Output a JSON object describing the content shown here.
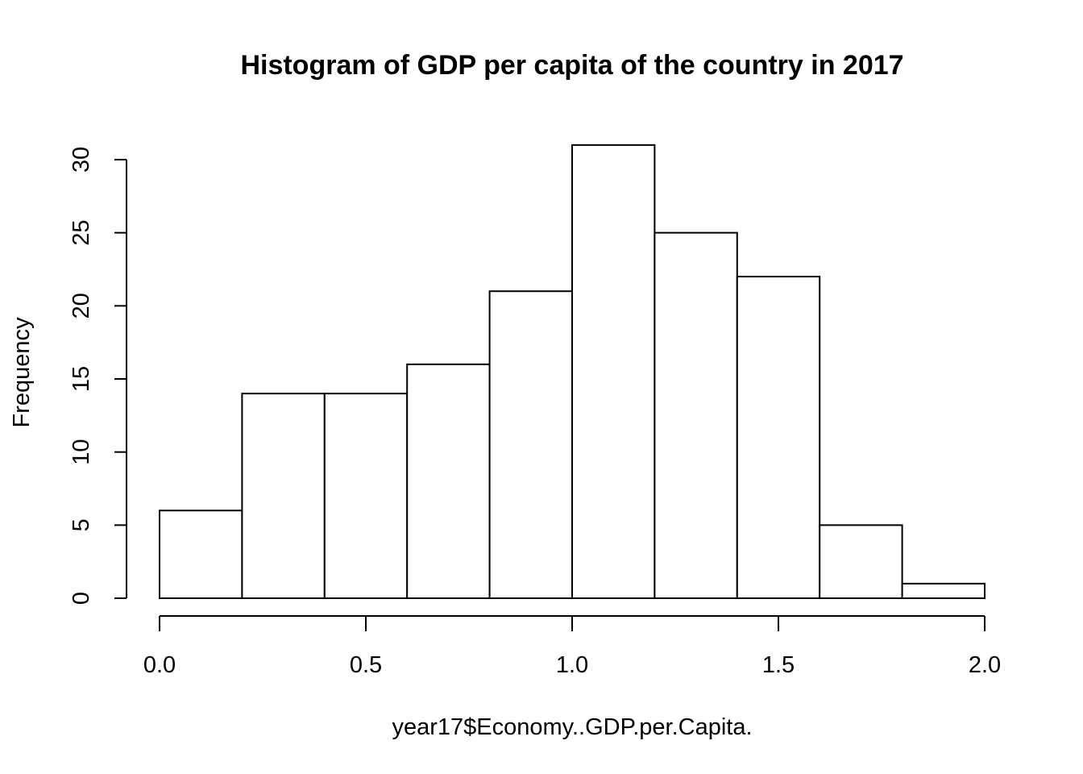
{
  "chart_data": {
    "type": "bar",
    "histogram": true,
    "title": "Histogram of GDP per capita of the country in 2017",
    "xlabel": "year17$Economy..GDP.per.Capita.",
    "ylabel": "Frequency",
    "bins": [
      {
        "start": 0.0,
        "end": 0.2,
        "count": 6
      },
      {
        "start": 0.2,
        "end": 0.4,
        "count": 14
      },
      {
        "start": 0.4,
        "end": 0.6,
        "count": 14
      },
      {
        "start": 0.6,
        "end": 0.8,
        "count": 16
      },
      {
        "start": 0.8,
        "end": 1.0,
        "count": 21
      },
      {
        "start": 1.0,
        "end": 1.2,
        "count": 31
      },
      {
        "start": 1.2,
        "end": 1.4,
        "count": 25
      },
      {
        "start": 1.4,
        "end": 1.6,
        "count": 22
      },
      {
        "start": 1.6,
        "end": 1.8,
        "count": 5
      },
      {
        "start": 1.8,
        "end": 2.0,
        "count": 1
      }
    ],
    "xlim": [
      0.0,
      2.0
    ],
    "ylim": [
      0,
      30
    ],
    "x_ticks": [
      "0.0",
      "0.5",
      "1.0",
      "1.5",
      "2.0"
    ],
    "y_ticks": [
      "0",
      "5",
      "10",
      "15",
      "20",
      "25",
      "30"
    ],
    "grid": false,
    "legend": "none",
    "colors": {
      "bar_fill": "#ffffff",
      "bar_stroke": "#000000",
      "axis": "#000000",
      "background": "#ffffff"
    }
  }
}
